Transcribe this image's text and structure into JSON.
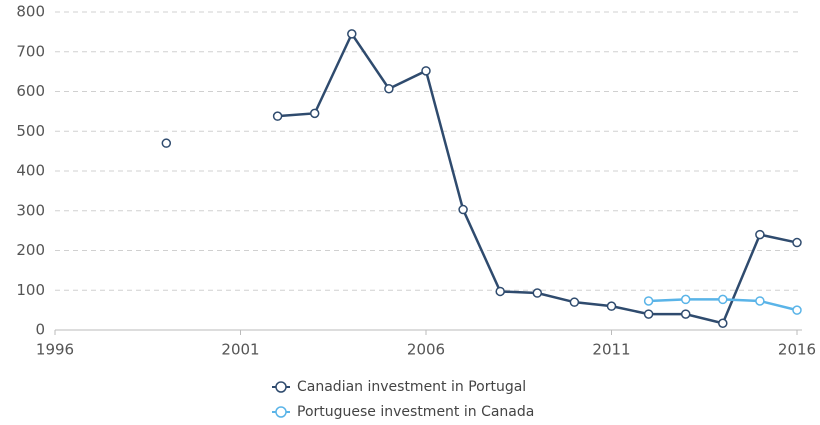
{
  "chart_data": {
    "type": "line",
    "x": [
      1999,
      2000,
      2001,
      2002,
      2003,
      2004,
      2005,
      2006,
      2007,
      2008,
      2009,
      2010,
      2011,
      2012,
      2013,
      2014,
      2015,
      2016
    ],
    "series": [
      {
        "name": "Canadian investment in Portugal",
        "color": "#2f4b6e",
        "values": [
          470,
          null,
          null,
          538,
          545,
          745,
          607,
          652,
          303,
          97,
          93,
          70,
          60,
          40,
          40,
          17,
          240,
          220
        ]
      },
      {
        "name": "Portuguese investment in Canada",
        "color": "#5ab4e8",
        "values": [
          null,
          null,
          null,
          null,
          null,
          null,
          null,
          null,
          null,
          null,
          null,
          null,
          null,
          73,
          77,
          77,
          73,
          50
        ]
      }
    ],
    "xlim": [
      1996,
      2016
    ],
    "xticks": [
      1996,
      2001,
      2006,
      2011,
      2016
    ],
    "ylim": [
      0,
      800
    ],
    "yticks": [
      0,
      100,
      200,
      300,
      400,
      500,
      600,
      700,
      800
    ],
    "grid": true,
    "legend": "bottom"
  }
}
